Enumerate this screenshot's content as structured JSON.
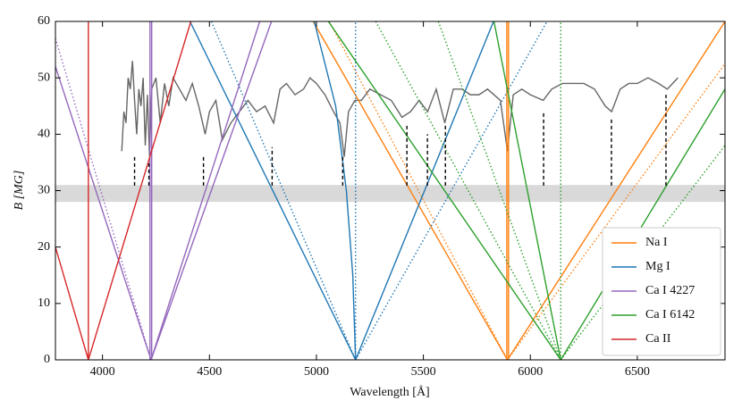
{
  "chart_data": {
    "type": "line",
    "xlabel": "Wavelength [Å]",
    "ylabel": "B [MG]",
    "xlim": [
      3780,
      6910
    ],
    "ylim": [
      0,
      60
    ],
    "xticks": [
      4000,
      4500,
      5000,
      5500,
      6000,
      6500
    ],
    "yticks": [
      0,
      10,
      20,
      30,
      40,
      50,
      60
    ],
    "legend": "lower right",
    "band": {
      "color": "#d9d9d9",
      "values": [
        28,
        31
      ]
    },
    "spectrum": {
      "color": "#666666",
      "x": [
        4090,
        4100,
        4110,
        4120,
        4130,
        4140,
        4150,
        4160,
        4170,
        4180,
        4190,
        4200,
        4210,
        4220,
        4230,
        4250,
        4270,
        4290,
        4310,
        4330,
        4360,
        4390,
        4420,
        4450,
        4480,
        4500,
        4530,
        4560,
        4600,
        4640,
        4680,
        4720,
        4760,
        4800,
        4830,
        4860,
        4900,
        4940,
        4970,
        5000,
        5040,
        5080,
        5110,
        5130,
        5150,
        5180,
        5210,
        5250,
        5300,
        5350,
        5400,
        5440,
        5480,
        5520,
        5560,
        5600,
        5640,
        5680,
        5720,
        5760,
        5800,
        5860,
        5893,
        5920,
        5960,
        6000,
        6060,
        6100,
        6150,
        6200,
        6250,
        6300,
        6350,
        6380,
        6420,
        6460,
        6500,
        6550,
        6600,
        6640,
        6690
      ],
      "values": [
        37,
        44,
        42,
        50,
        48,
        53,
        46,
        40,
        48,
        45,
        50,
        38,
        47,
        36,
        48,
        50,
        42,
        49,
        45,
        50,
        48,
        46,
        49,
        45,
        40,
        44,
        46,
        39,
        42,
        44,
        46,
        44,
        45,
        42,
        48,
        49,
        47,
        48,
        50,
        49,
        47,
        44,
        42,
        36,
        44,
        46,
        46,
        48,
        47,
        46,
        43,
        44,
        46,
        44,
        48,
        42,
        48,
        48,
        47,
        47,
        48,
        46,
        37,
        47,
        48,
        47,
        46,
        48,
        49,
        49,
        49,
        48,
        45,
        44,
        48,
        49,
        49,
        50,
        49,
        48,
        50
      ]
    },
    "markers": {
      "color": "#000000",
      "x": [
        4150,
        4217,
        4472,
        4793,
        5123,
        5423,
        5519,
        5603,
        6062,
        6379,
        6634
      ],
      "low": [
        30.9,
        30.9,
        30.9,
        30.9,
        30.9,
        30.9,
        30.9,
        30.9,
        30.9,
        30.9,
        30.9
      ],
      "high": [
        36,
        35.3,
        36,
        37.7,
        36,
        41.6,
        40,
        41.6,
        44,
        43,
        47
      ]
    },
    "series": [
      {
        "name": "Na I",
        "color": "#ff7f0e",
        "lines": [
          {
            "style": "solid",
            "x": [
              4985,
              5893,
              6910
            ],
            "values": [
              60,
              0,
              60
            ]
          },
          {
            "style": "dotted",
            "x": [
              5060,
              5893,
              6910
            ],
            "values": [
              60,
              0,
              52.5
            ]
          },
          {
            "style": "solid",
            "x": [
              5890,
              5890
            ],
            "values": [
              0,
              60
            ]
          },
          {
            "style": "solid",
            "x": [
              5898,
              5898
            ],
            "values": [
              0,
              60
            ]
          }
        ]
      },
      {
        "name": "Mg I",
        "color": "#1f77b4",
        "lines": [
          {
            "style": "solid",
            "x": [
              4409,
              5183,
              5828
            ],
            "values": [
              60,
              0,
              60
            ]
          },
          {
            "style": "solid",
            "x": [
              4990,
              5090,
              5140,
              5170,
              5183
            ],
            "values": [
              60,
              45,
              30,
              15,
              0
            ]
          },
          {
            "style": "dotted",
            "x": [
              4509,
              5183,
              6078
            ],
            "values": [
              60,
              0,
              60
            ]
          },
          {
            "style": "dotted",
            "x": [
              5183,
              5183
            ],
            "values": [
              0,
              60
            ]
          }
        ]
      },
      {
        "name": "Ca I 4227",
        "color": "#9467bd",
        "lines": [
          {
            "style": "solid",
            "x": [
              3780,
              4227,
              4790
            ],
            "values": [
              52,
              0,
              60
            ]
          },
          {
            "style": "solid",
            "x": [
              4227,
              4735
            ],
            "values": [
              0,
              60
            ]
          },
          {
            "style": "dotted",
            "x": [
              3780,
              4227
            ],
            "values": [
              57,
              0
            ]
          },
          {
            "style": "solid",
            "x": [
              4222,
              4222
            ],
            "values": [
              0,
              60
            ]
          },
          {
            "style": "solid",
            "x": [
              4230,
              4230
            ],
            "values": [
              0,
              60
            ]
          }
        ]
      },
      {
        "name": "Ca I 6142",
        "color": "#2ca02c",
        "lines": [
          {
            "style": "solid",
            "x": [
              5056,
              6142,
              6910
            ],
            "values": [
              60,
              0,
              48
            ]
          },
          {
            "style": "solid",
            "x": [
              5830,
              6142
            ],
            "values": [
              60,
              0
            ]
          },
          {
            "style": "dotted",
            "x": [
              5277,
              6142,
              6910
            ],
            "values": [
              60,
              0,
              38
            ]
          },
          {
            "style": "dotted",
            "x": [
              5570,
              6142
            ],
            "values": [
              60,
              0
            ]
          },
          {
            "style": "dotted",
            "x": [
              6142,
              6142
            ],
            "values": [
              0,
              60
            ]
          }
        ]
      },
      {
        "name": "Ca II",
        "color": "#d62728",
        "lines": [
          {
            "style": "solid",
            "x": [
              3780,
              3934,
              4413
            ],
            "values": [
              20,
              0,
              60
            ]
          },
          {
            "style": "solid",
            "x": [
              3934,
              3934
            ],
            "values": [
              0,
              60
            ]
          }
        ]
      }
    ]
  }
}
